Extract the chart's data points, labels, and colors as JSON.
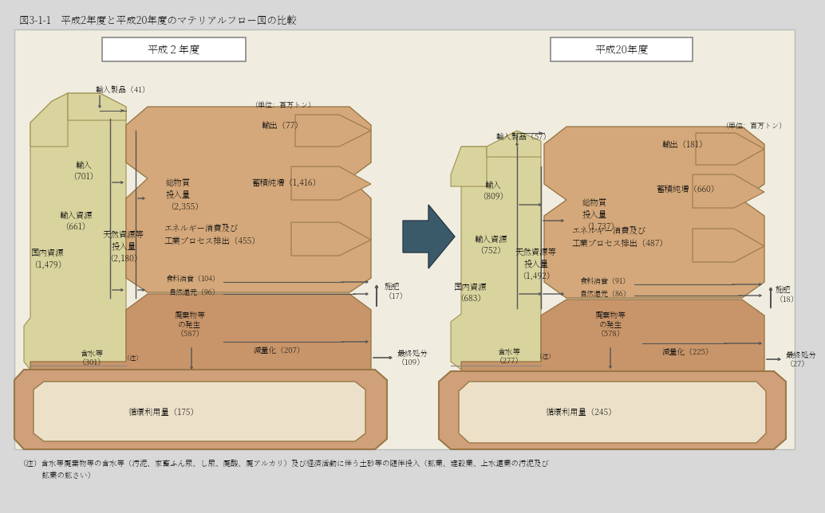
{
  "title": "図3-1-1　平成2年度と平成20年度のマテリアルフロー図の比較",
  "bg_color": "#d8d8d8",
  "left_title": "平成２年度",
  "right_title": "平成20年度",
  "unit_text": "（単位：百万トン）",
  "left": {
    "import_product": "輸入製品（41）",
    "import": "輸入\n（701）",
    "import_resource": "輸入資源\n（661）",
    "domestic": "国内資源\n（1,479）",
    "natural_input": "天然資源等\n投入量\n（2,180）",
    "total_input": "総物質\n投入量\n（2,355）",
    "export": "輸出（77）",
    "accumulation": "蓄積純増（1,416）",
    "energy": "エネルギー消費及び\n工業プロセス排出（455）",
    "food": "食料消費（104）",
    "natural_return": "自然還元（96）",
    "waste": "廃棄物等\nの発生\n（587）",
    "reduction": "減量化（207）",
    "final_disposal": "最終処分\n（109）",
    "fertilizer": "施肥\n（17）",
    "water": "含水等\n（301）",
    "water_note": "（注）",
    "circulation": "循環利用量（175）"
  },
  "right": {
    "import_product": "輸入製品（57）",
    "import": "輸入\n（809）",
    "import_resource": "輸入資源\n（752）",
    "domestic": "国内資源\n（683）",
    "natural_input": "天然資源等\n投入量\n（1,492）",
    "total_input": "総物質\n投入量\n（1,737）",
    "export": "輸出（181）",
    "accumulation": "蓄積純増（660）",
    "energy": "エネルギー消費及び\n工業プロセス排出（487）",
    "food": "食料消費（91）",
    "natural_return": "自然還元（86）",
    "waste": "廃棄物等\nの発生\n（578）",
    "reduction": "減量化（225）",
    "final_disposal": "最終処分\n（27）",
    "fertilizer": "施肥\n（18）",
    "water": "含水等\n（277）",
    "water_note": "（注）",
    "circulation": "循環利用量（245）"
  },
  "note_line1": "（注）含水等廃棄物等の含水等（汚泥、家畜ふん尿、し尿、廃酸、廃アルカリ）及び経済活動に伴う土砂等の随伴投入（鉱業、建設業、上水道業の汚泥及び",
  "note_line2": "　　　鉱業の鉱さい）",
  "col_input_bg": "#d9d49e",
  "col_body_upper": "#d4a87a",
  "col_body_lower": "#c8956a",
  "col_loop_outer": "#cfa07a",
  "col_loop_inner": "#ece0c8",
  "col_panel_bg": "#f0ede0",
  "col_border": "#9a7848",
  "col_arrow_dark": "#3a5a6a",
  "col_line": "#555555",
  "col_header_bg": "#ffffff",
  "col_header_border": "#888888",
  "col_text": "#111111"
}
